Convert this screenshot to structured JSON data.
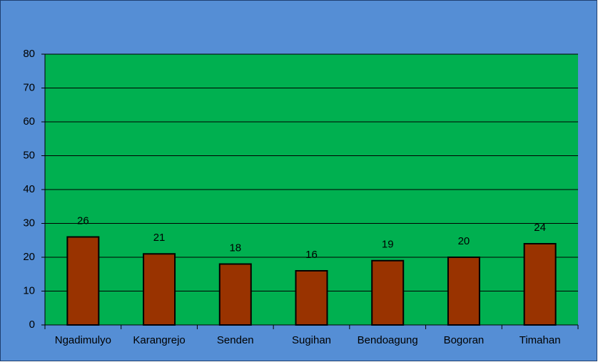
{
  "chart_data": {
    "type": "bar",
    "categories": [
      "Ngadimulyo",
      "Karangrejo",
      "Senden",
      "Sugihan",
      "Bendoagung",
      "Bogoran",
      "Timahan"
    ],
    "values": [
      26,
      21,
      18,
      16,
      19,
      20,
      24
    ],
    "color": "#993300",
    "ylim": [
      0,
      80
    ],
    "yticks": [
      0,
      10,
      20,
      30,
      40,
      50,
      60,
      70,
      80
    ],
    "grid": true
  }
}
